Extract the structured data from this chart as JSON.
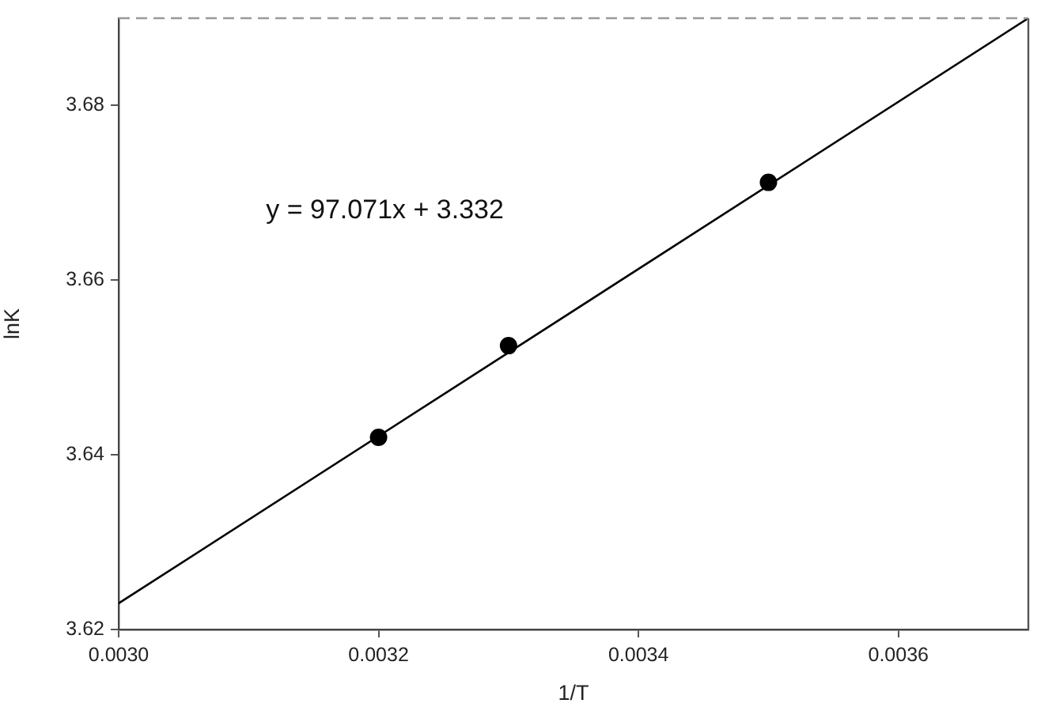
{
  "chart_data": {
    "type": "scatter",
    "xlabel": "1/T",
    "ylabel": "lnK",
    "annotations": [
      "y = 97.071x + 3.332"
    ],
    "x": [
      0.0032,
      0.0033,
      0.0035
    ],
    "series": [
      {
        "color": "#000000",
        "values": [
          3.642,
          3.6525,
          3.6712
        ]
      },
      {
        "type": "line",
        "marker": "none",
        "color": "#000000",
        "x": [
          0.003,
          0.0037
        ],
        "values": [
          3.623,
          3.69
        ]
      }
    ],
    "marker": "circle",
    "xlim": [
      0.003,
      0.0037
    ],
    "ylim": [
      3.62,
      3.69
    ],
    "xticks": [
      {
        "value": 0.003,
        "label": "0.0030"
      },
      0.0032,
      0.0034,
      0.0036
    ],
    "yticks": [
      3.62,
      3.64,
      3.66,
      3.68
    ]
  }
}
